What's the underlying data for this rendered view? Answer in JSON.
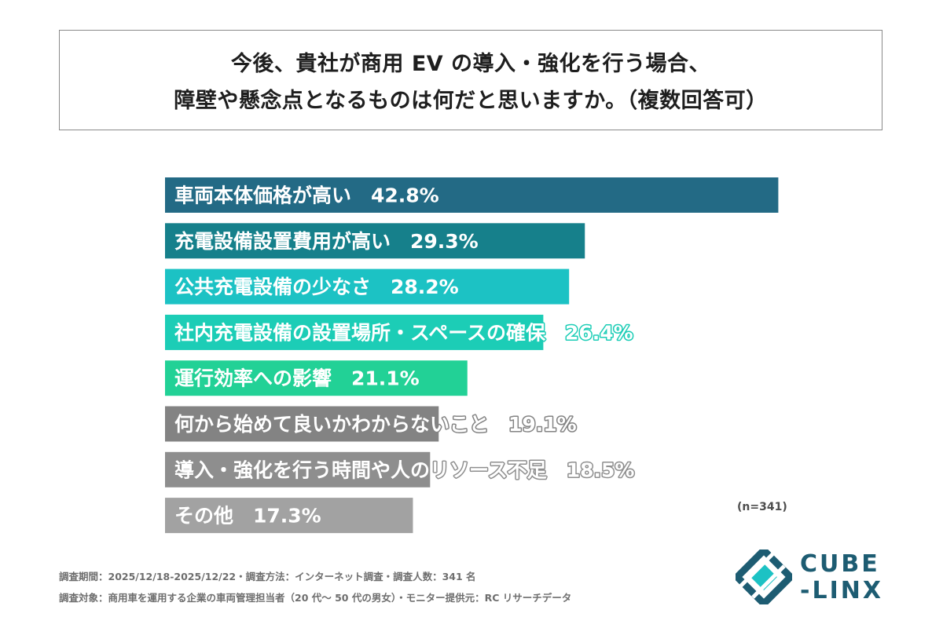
{
  "title": {
    "line1": "今後、貴社が商用 EV の導入・強化を行う場合、",
    "line2": "障壁や懸念点となるものは何だと思いますか。（複数回答可）"
  },
  "chart_data": {
    "type": "bar",
    "orientation": "horizontal",
    "categories": [
      "車両本体価格が高い",
      "充電設備設置費用が高い",
      "公共充電設備の少なさ",
      "社内充電設備の設置場所・スペースの確保",
      "運行効率への影響",
      "何から始めて良いかわからないこと",
      "導入・強化を行う時間や人のリソース不足",
      "その他"
    ],
    "values": [
      42.8,
      29.3,
      28.2,
      26.4,
      21.1,
      19.1,
      18.5,
      17.3
    ],
    "value_labels": [
      "42.8%",
      "29.3%",
      "28.2%",
      "26.4%",
      "21.1%",
      "19.1%",
      "18.5%",
      "17.3%"
    ],
    "colors": [
      "#236a85",
      "#16808b",
      "#1cc2c4",
      "#1ccdb6",
      "#22d196",
      "#838383",
      "#8e8e8e",
      "#a2a2a2"
    ],
    "xlim": [
      0,
      43.6
    ],
    "grid": false,
    "legend": "none"
  },
  "sample_note": "(n=341)",
  "footnotes": {
    "line1": "調査期間：2025/12/18-2025/12/22・調査方法：インターネット調査・調査人数：341 名",
    "line2": "調査対象：商用車を運用する企業の車両管理担当者（20 代～ 50 代の男女）・モニター提供元：RC リサーチデータ"
  },
  "logo": {
    "line1": "CUBE",
    "line2": "-LINX",
    "colors": [
      "#1d5c72",
      "#1cc2c4"
    ]
  }
}
